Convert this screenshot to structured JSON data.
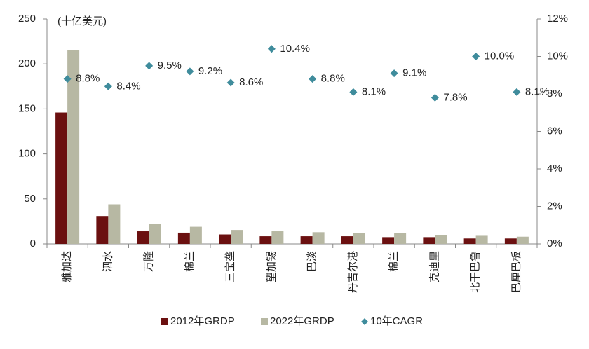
{
  "chart_data": {
    "type": "bar",
    "annotation": "(十亿美元)",
    "categories": [
      "雅加达",
      "泗水",
      "万隆",
      "棉兰",
      "三宝垄",
      "望加锡",
      "巴淡",
      "丹吉尔港",
      "棉兰",
      "克迪里",
      "北干巴鲁",
      "巴厘巴板"
    ],
    "series": [
      {
        "name": "2012年GRDP",
        "type": "bar",
        "color": "#6b1010",
        "values": [
          146,
          31,
          14,
          12.5,
          10.5,
          8.5,
          8.5,
          8.5,
          7.5,
          7.5,
          6,
          6
        ]
      },
      {
        "name": "2022年GRDP",
        "type": "bar",
        "color": "#b7b8a3",
        "values": [
          215,
          44,
          22,
          19,
          15.5,
          14,
          13,
          12,
          12,
          10,
          9,
          8
        ]
      },
      {
        "name": "10年CAGR",
        "type": "scatter",
        "axis": "y2",
        "color": "#3f8c9c",
        "values": [
          8.8,
          8.4,
          9.5,
          9.2,
          8.6,
          10.4,
          8.8,
          8.1,
          9.1,
          7.8,
          10.0,
          8.1
        ],
        "value_labels": [
          "8.8%",
          "8.4%",
          "9.5%",
          "9.2%",
          "8.6%",
          "10.4%",
          "8.8%",
          "8.1%",
          "9.1%",
          "7.8%",
          "10.0%",
          "8.1%"
        ]
      }
    ],
    "ylim": [
      0,
      250
    ],
    "yticks": [
      0,
      50,
      100,
      150,
      200,
      250
    ],
    "y2lim": [
      0,
      12
    ],
    "y2ticks": [
      {
        "value": 0,
        "label": "0%"
      },
      {
        "value": 2,
        "label": "2%"
      },
      {
        "value": 4,
        "label": "4%"
      },
      {
        "value": 6,
        "label": "6%"
      },
      {
        "value": 8,
        "label": "8%"
      },
      {
        "value": 10,
        "label": "10%"
      },
      {
        "value": 12,
        "label": "12%"
      }
    ],
    "legend": "bottom"
  }
}
